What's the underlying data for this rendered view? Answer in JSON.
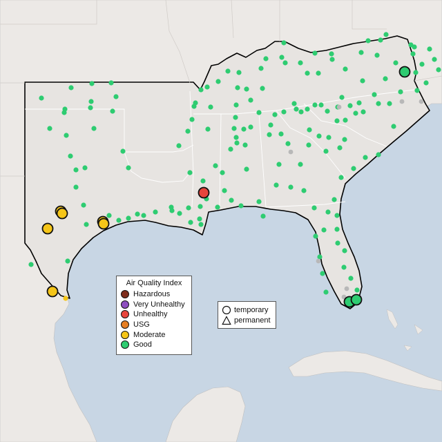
{
  "legend": {
    "title": "Air Quality Index",
    "categories": [
      {
        "label": "Hazardous",
        "color": "#7e2d1c"
      },
      {
        "label": "Very Unhealthy",
        "color": "#8e4fbf"
      },
      {
        "label": "Unhealthy",
        "color": "#e8453c"
      },
      {
        "label": "USG",
        "color": "#e67e22"
      },
      {
        "label": "Moderate",
        "color": "#f5c518"
      },
      {
        "label": "Good",
        "color": "#2ecc71"
      }
    ]
  },
  "site_legend": {
    "temporary": "temporary",
    "permanent": "permanent"
  },
  "colors": {
    "water": "#c8d6e4",
    "land": "#ece9e6",
    "region": "#e9e6e3",
    "good": "#2ecc71",
    "inactive": "#b8b8b8"
  },
  "highlighted_sites": [
    {
      "aqi": "Unhealthy",
      "color": "#e8453c"
    },
    {
      "aqi": "Moderate",
      "color": "#f5c518"
    },
    {
      "aqi": "Moderate",
      "color": "#f5c518"
    },
    {
      "aqi": "Moderate",
      "color": "#f5c518"
    },
    {
      "aqi": "Moderate",
      "color": "#f5c518"
    },
    {
      "aqi": "Moderate",
      "color": "#f5c518"
    },
    {
      "aqi": "Moderate",
      "color": "#f5c518"
    },
    {
      "aqi": "Good",
      "color": "#2ecc71"
    },
    {
      "aqi": "Good",
      "color": "#2ecc71"
    },
    {
      "aqi": "Good",
      "color": "#2ecc71"
    }
  ]
}
